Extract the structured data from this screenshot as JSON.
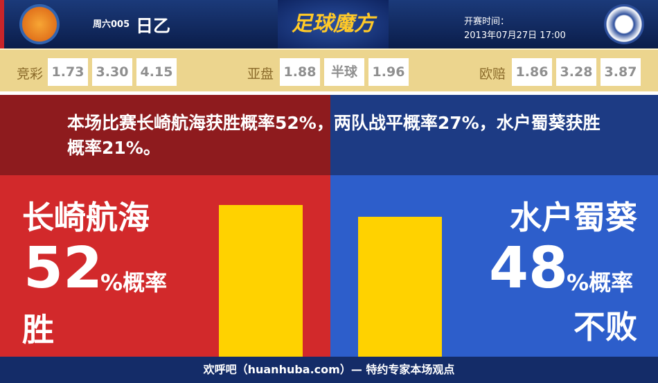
{
  "header": {
    "match_code": "周六005",
    "league": "日乙",
    "brand": "足球魔方",
    "kickoff_label": "开赛时间：",
    "kickoff_time": "2013年07月27日 17:00"
  },
  "odds": {
    "jingcai": {
      "label": "竞彩",
      "values": [
        "1.73",
        "3.30",
        "4.15"
      ]
    },
    "yapan": {
      "label": "亚盘",
      "values": [
        "1.88",
        "半球",
        "1.96"
      ]
    },
    "oupei": {
      "label": "欧赔",
      "values": [
        "1.86",
        "3.28",
        "3.87"
      ]
    }
  },
  "summary": "本场比赛长崎航海获胜概率52%，两队战平概率27%，水户蜀葵获胜概率21%。",
  "home": {
    "name": "长崎航海",
    "percent": "52",
    "unit": "%概率",
    "outcome": "胜",
    "value": 52
  },
  "away": {
    "name": "水户蜀葵",
    "percent": "48",
    "unit": "%概率",
    "outcome": "不败",
    "value": 48
  },
  "colors": {
    "home": "#d2292b",
    "away": "#2d5ecb",
    "bar": "#ffd200"
  },
  "footer": "欢呼吧（huanhuba.com）— 特约专家本场观点"
}
